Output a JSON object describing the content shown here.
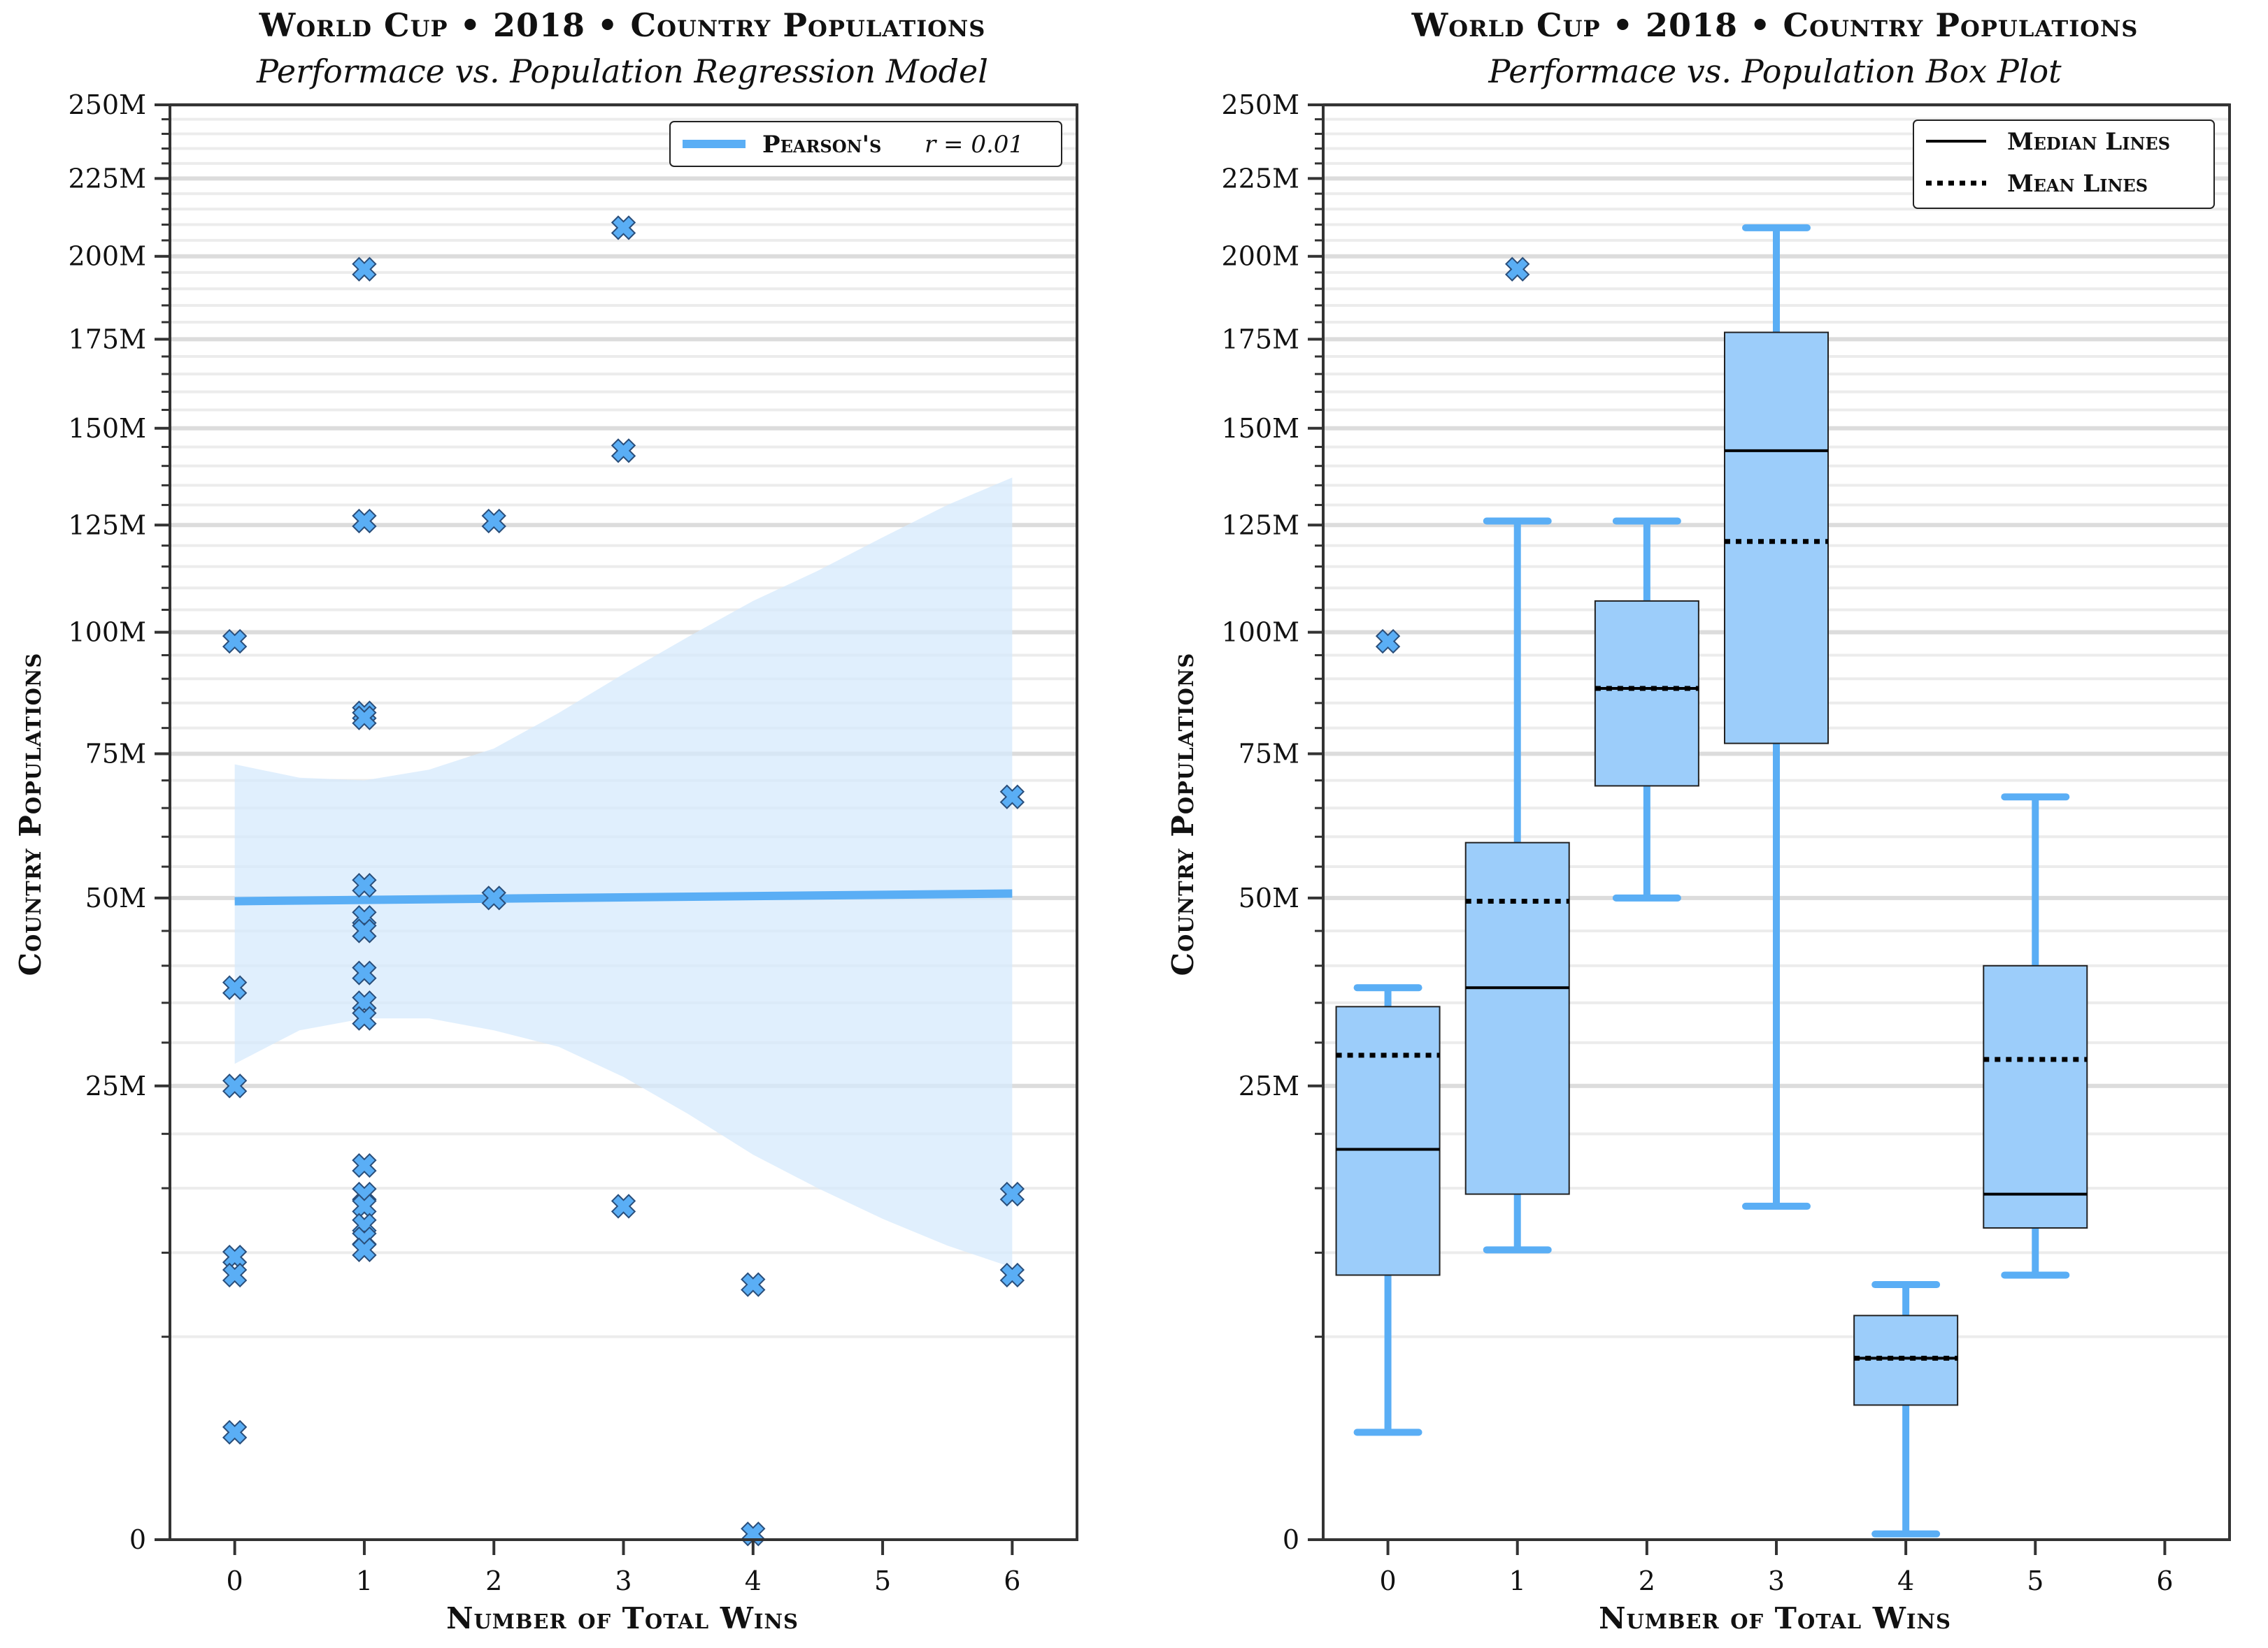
{
  "chart_data": [
    {
      "type": "scatter",
      "title": "World Cup • 2018 • Country Populations",
      "subtitle": "Performace vs. Population Regression Model",
      "xlabel": "Number of Total Wins",
      "ylabel": "Country Populations",
      "xlim": [
        -0.5,
        6.5
      ],
      "ylim": [
        0,
        250000000
      ],
      "y_scale": "sqrt",
      "xticks": [
        0,
        1,
        2,
        3,
        4,
        5,
        6
      ],
      "xtick_labels": [
        "0",
        "1",
        "2",
        "3",
        "4",
        "5",
        "6"
      ],
      "yticks": [
        0,
        25000000,
        50000000,
        75000000,
        100000000,
        125000000,
        150000000,
        175000000,
        200000000,
        225000000,
        250000000
      ],
      "ytick_labels": [
        "0",
        "25M",
        "50M",
        "75M",
        "100M",
        "125M",
        "150M",
        "175M",
        "200M",
        "225M",
        "250M"
      ],
      "legend": {
        "label": "Pearson's",
        "stat": "r = 0.01",
        "position": "top-right"
      },
      "grid": "horizontal",
      "marker": "x",
      "series_color": "#5aaef5",
      "points": [
        {
          "x": 0,
          "y": 98000000
        },
        {
          "x": 0,
          "y": 37000000
        },
        {
          "x": 0,
          "y": 25000000
        },
        {
          "x": 0,
          "y": 9700000
        },
        {
          "x": 0,
          "y": 8500000
        },
        {
          "x": 0,
          "y": 1400000
        },
        {
          "x": 1,
          "y": 196000000
        },
        {
          "x": 1,
          "y": 126000000
        },
        {
          "x": 1,
          "y": 83000000
        },
        {
          "x": 1,
          "y": 82000000
        },
        {
          "x": 1,
          "y": 52000000
        },
        {
          "x": 1,
          "y": 47000000
        },
        {
          "x": 1,
          "y": 45000000
        },
        {
          "x": 1,
          "y": 39000000
        },
        {
          "x": 1,
          "y": 35000000
        },
        {
          "x": 1,
          "y": 33000000
        },
        {
          "x": 1,
          "y": 17000000
        },
        {
          "x": 1,
          "y": 14500000
        },
        {
          "x": 1,
          "y": 13500000
        },
        {
          "x": 1,
          "y": 12000000
        },
        {
          "x": 1,
          "y": 11000000
        },
        {
          "x": 1,
          "y": 10200000
        },
        {
          "x": 2,
          "y": 126000000
        },
        {
          "x": 2,
          "y": 50000000
        },
        {
          "x": 3,
          "y": 209000000
        },
        {
          "x": 3,
          "y": 144000000
        },
        {
          "x": 3,
          "y": 13500000
        },
        {
          "x": 4,
          "y": 7900000
        },
        {
          "x": 4,
          "y": 4000
        },
        {
          "x": 6,
          "y": 67000000
        },
        {
          "x": 6,
          "y": 14500000
        },
        {
          "x": 6,
          "y": 8500000
        }
      ],
      "regression": {
        "x": [
          0,
          6
        ],
        "y": [
          49500000,
          50700000
        ]
      },
      "confidence_band": {
        "x": [
          0,
          0.5,
          1,
          1.5,
          2,
          2.5,
          3,
          3.5,
          4,
          4.5,
          5,
          5.5,
          6
        ],
        "lower": [
          27500000,
          31500000,
          33000000,
          33000000,
          31500000,
          29500000,
          26000000,
          22000000,
          18000000,
          15000000,
          12500000,
          10500000,
          9000000
        ],
        "upper": [
          73000000,
          70500000,
          70000000,
          72000000,
          76000000,
          83000000,
          91000000,
          99000000,
          107000000,
          114000000,
          122000000,
          130000000,
          137000000
        ]
      }
    },
    {
      "type": "box",
      "title": "World Cup • 2018 • Country Populations",
      "subtitle": "Performace vs. Population Box Plot",
      "xlabel": "Number of Total Wins",
      "ylabel": "Country Populations",
      "xlim": [
        -0.5,
        6.5
      ],
      "ylim": [
        0,
        250000000
      ],
      "y_scale": "sqrt",
      "xticks": [
        0,
        1,
        2,
        3,
        4,
        5,
        6
      ],
      "xtick_labels": [
        "0",
        "1",
        "2",
        "3",
        "4",
        "5",
        "6"
      ],
      "yticks": [
        0,
        25000000,
        50000000,
        75000000,
        100000000,
        125000000,
        150000000,
        175000000,
        200000000,
        225000000,
        250000000
      ],
      "ytick_labels": [
        "0",
        "25M",
        "50M",
        "75M",
        "100M",
        "125M",
        "150M",
        "175M",
        "200M",
        "225M",
        "250M"
      ],
      "legend": {
        "items": [
          "Median Lines",
          "Mean Lines"
        ],
        "position": "top-right"
      },
      "grid": "horizontal",
      "box_color": "#9ccdfa",
      "whisker_color": "#5aaef5",
      "boxes": [
        {
          "x": 0,
          "whislo": 1400000,
          "q1": 8500000,
          "median": 18500000,
          "q3": 34500000,
          "whishi": 37000000,
          "mean": 28500000,
          "fliers": [
            98000000
          ]
        },
        {
          "x": 1,
          "whislo": 10200000,
          "q1": 14500000,
          "median": 37000000,
          "q3": 59000000,
          "whishi": 126000000,
          "mean": 49500000,
          "fliers": [
            196000000
          ]
        },
        {
          "x": 2,
          "whislo": 50000000,
          "q1": 69000000,
          "median": 88000000,
          "q3": 107000000,
          "whishi": 126000000,
          "mean": 88000000,
          "fliers": []
        },
        {
          "x": 3,
          "whislo": 13500000,
          "q1": 77000000,
          "median": 144000000,
          "q3": 177000000,
          "whishi": 209000000,
          "mean": 121000000,
          "fliers": []
        },
        {
          "x": 4,
          "whislo": 4000,
          "q1": 2200000,
          "median": 4000000,
          "q3": 6100000,
          "whishi": 7900000,
          "mean": 4000000,
          "fliers": []
        },
        {
          "x": 5,
          "whislo": 8500000,
          "q1": 11800000,
          "median": 14500000,
          "q3": 40000000,
          "whishi": 67000000,
          "mean": 28000000,
          "fliers": []
        }
      ]
    }
  ]
}
